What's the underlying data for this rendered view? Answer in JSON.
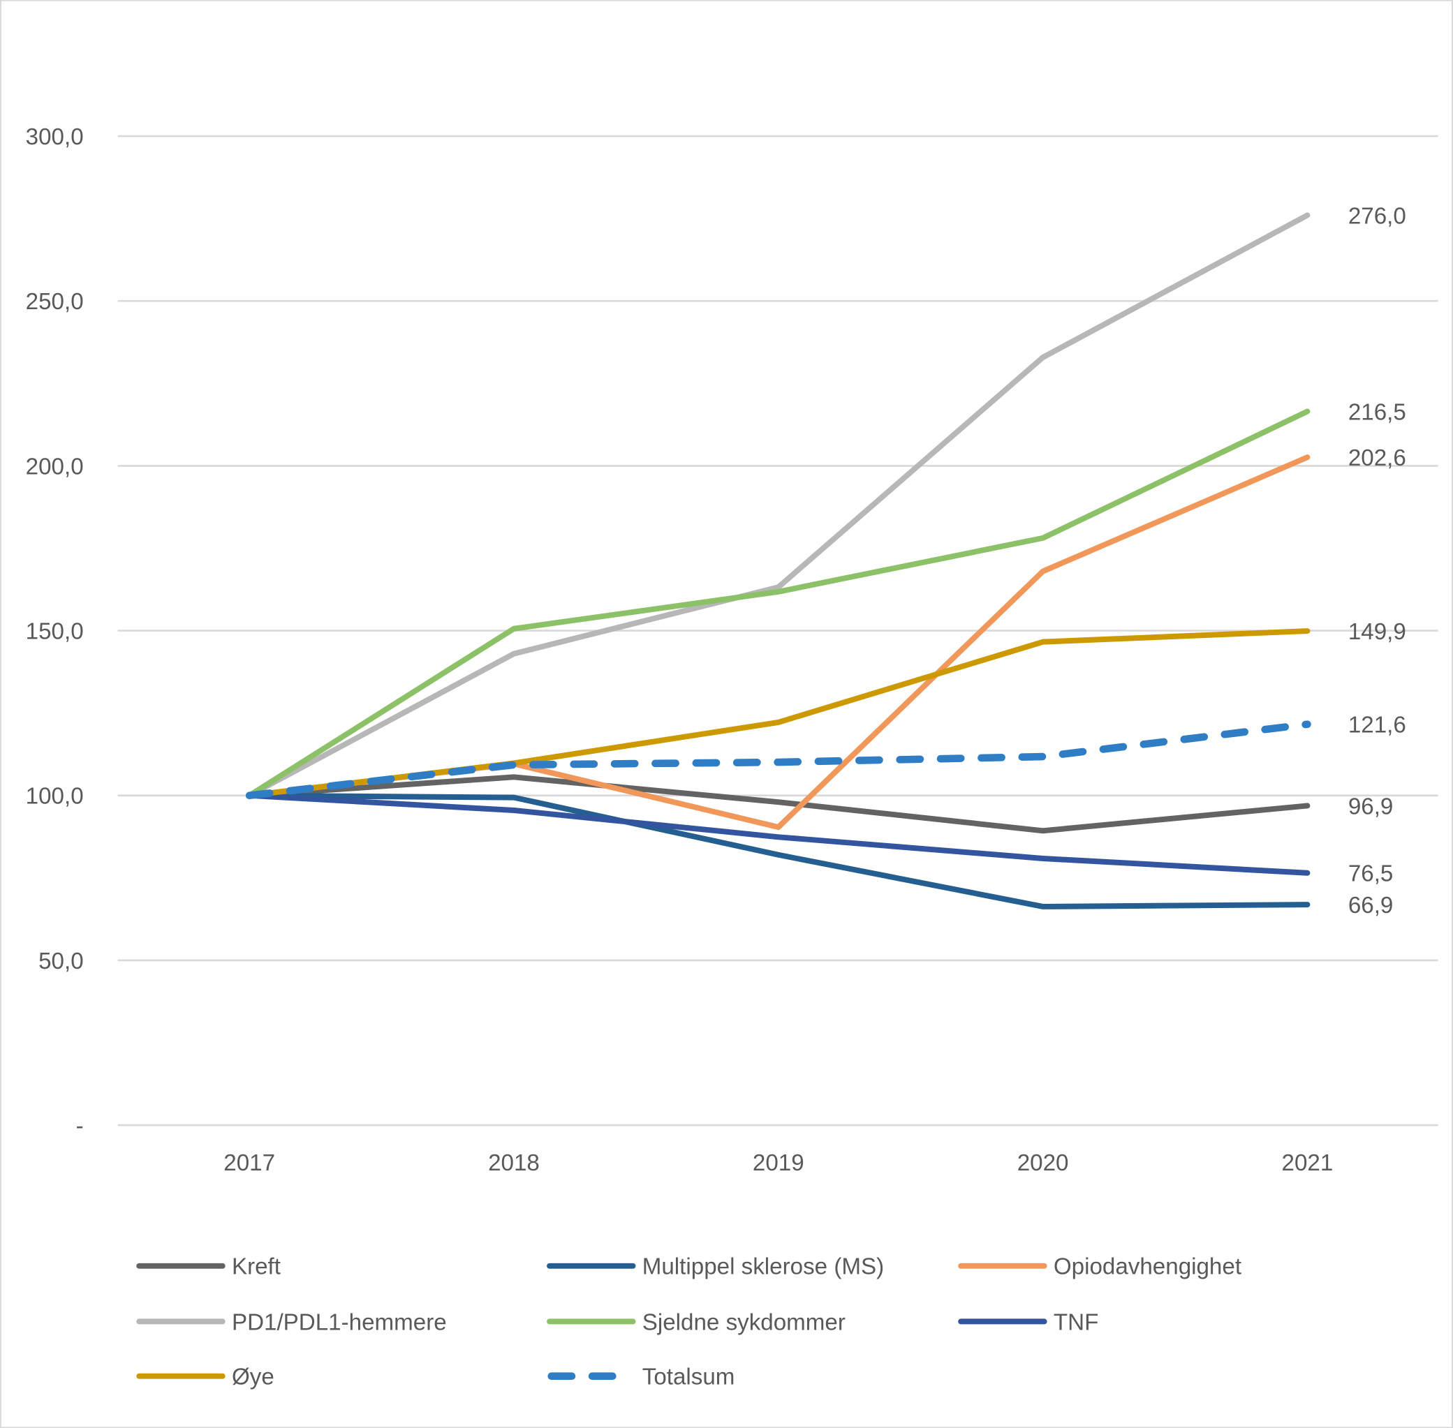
{
  "chart_data": {
    "type": "line",
    "title": "",
    "xlabel": "",
    "ylabel": "",
    "categories": [
      "2017",
      "2018",
      "2019",
      "2020",
      "2021"
    ],
    "ylim": [
      0,
      300
    ],
    "yticks": [
      "-",
      "50,0",
      "100,0",
      "150,0",
      "200,0",
      "250,0",
      "300,0"
    ],
    "ytick_values": [
      0,
      50,
      100,
      150,
      200,
      250,
      300
    ],
    "grid": true,
    "legend_position": "bottom",
    "series": [
      {
        "name": "Kreft",
        "color": "#636363",
        "dashed": false,
        "values": [
          100,
          105.6,
          98.0,
          89.3,
          96.9
        ],
        "end_label": "96,9"
      },
      {
        "name": "Multippel sklerose (MS)",
        "color": "#255E91",
        "dashed": false,
        "values": [
          100,
          99.4,
          82.0,
          66.3,
          66.9
        ],
        "end_label": "66,9"
      },
      {
        "name": "Opiodavhengighet",
        "color": "#F1975A",
        "dashed": false,
        "values": [
          100,
          109.6,
          90.4,
          168.0,
          202.6
        ],
        "end_label": "202,6"
      },
      {
        "name": "PD1/PDL1-hemmere",
        "color": "#B7B7B7",
        "dashed": false,
        "values": [
          100,
          143.0,
          163.2,
          232.9,
          276.0
        ],
        "end_label": "276,0"
      },
      {
        "name": "Sjeldne sykdommer",
        "color": "#8CC168",
        "dashed": false,
        "values": [
          100,
          150.6,
          161.8,
          178.1,
          216.5
        ],
        "end_label": "216,5"
      },
      {
        "name": "TNF",
        "color": "#3355A0",
        "dashed": false,
        "values": [
          100,
          95.5,
          87.4,
          80.9,
          76.5
        ],
        "end_label": "76,5"
      },
      {
        "name": "Øye",
        "color": "#CC9A00",
        "dashed": false,
        "values": [
          100,
          109.8,
          122.2,
          146.6,
          149.9
        ],
        "end_label": "149,9"
      },
      {
        "name": "Totalsum",
        "color": "#2F7DC4",
        "dashed": true,
        "values": [
          100,
          109.3,
          110.1,
          111.8,
          121.6
        ],
        "end_label": "121,6"
      }
    ]
  }
}
